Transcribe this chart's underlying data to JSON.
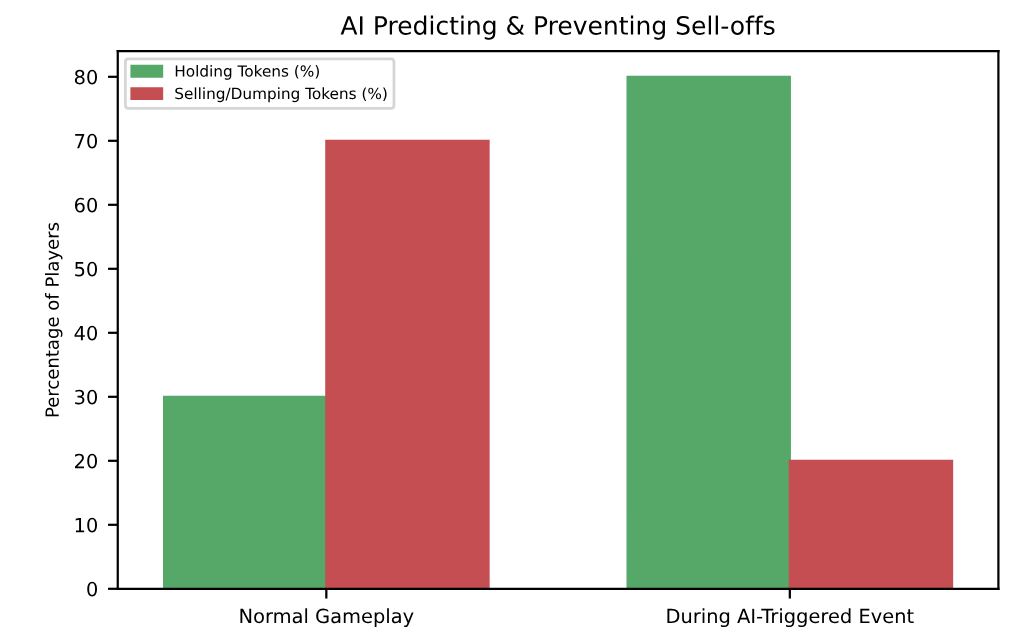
{
  "chart_data": {
    "type": "bar",
    "title": "AI Predicting & Preventing Sell-offs",
    "ylabel": "Percentage of Players",
    "categories": [
      "Normal Gameplay",
      "During AI-Triggered Event"
    ],
    "series": [
      {
        "name": "Holding Tokens (%)",
        "color": "#55a868",
        "values": [
          30,
          80
        ]
      },
      {
        "name": "Selling/Dumping Tokens (%)",
        "color": "#c44e52",
        "values": [
          70,
          20
        ]
      }
    ],
    "ylim": [
      0,
      84
    ],
    "yticks": [
      0,
      10,
      20,
      30,
      40,
      50,
      60,
      70,
      80
    ],
    "grid": false,
    "legend": "top left"
  }
}
